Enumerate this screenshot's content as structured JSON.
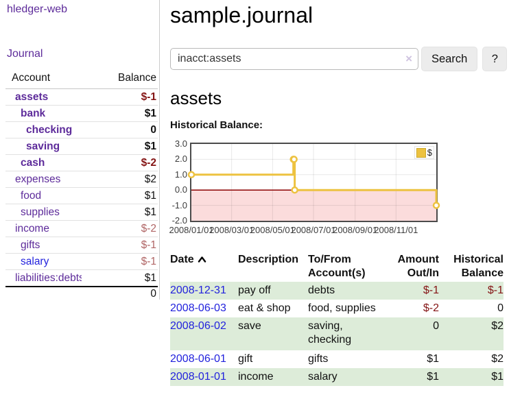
{
  "colors": {
    "accent_purple": "#5d2b9a",
    "link_blue": "#2222dd",
    "negative_strong": "#841414",
    "negative_soft": "#b06565",
    "row_green": "#ddecd9",
    "chart_series_yellow": "#edc240",
    "chart_negative_fill": "#fbdcdc",
    "chart_zero_line": "#8b0000"
  },
  "sidebar": {
    "brand": "hledger-web",
    "journal_label": "Journal",
    "accounts": {
      "header_account": "Account",
      "header_balance": "Balance",
      "rows": [
        {
          "name": "assets",
          "balance": "$-1"
        },
        {
          "name": "bank",
          "balance": "$1"
        },
        {
          "name": "checking",
          "balance": "0"
        },
        {
          "name": "saving",
          "balance": "$1"
        },
        {
          "name": "cash",
          "balance": "$-2"
        },
        {
          "name": "expenses",
          "balance": "$2"
        },
        {
          "name": "food",
          "balance": "$1"
        },
        {
          "name": "supplies",
          "balance": "$1"
        },
        {
          "name": "income",
          "balance": "$-2"
        },
        {
          "name": "gifts",
          "balance": "$-1"
        },
        {
          "name": "salary",
          "balance": "$-1"
        },
        {
          "name": "liabilities:debts",
          "balance": "$1"
        }
      ],
      "total": "0"
    }
  },
  "main": {
    "title": "sample.journal",
    "search": {
      "value": "inacct:assets",
      "clear_icon": "×",
      "button_label": "Search",
      "help_label": "?"
    },
    "account_heading": "assets",
    "register": {
      "headers": {
        "date": "Date",
        "sort_icon": "chevron-up",
        "description": "Description",
        "tofrom_1": "To/From",
        "tofrom_2": "Account(s)",
        "amount_1": "Amount",
        "amount_2": "Out/In",
        "balance_1": "Historical",
        "balance_2": "Balance"
      },
      "rows": [
        {
          "date": "2008-12-31",
          "description": "pay off",
          "accounts": "debts",
          "amount": "$-1",
          "balance": "$-1"
        },
        {
          "date": "2008-06-03",
          "description": "eat & shop",
          "accounts": "food, supplies",
          "amount": "$-2",
          "balance": "0"
        },
        {
          "date": "2008-06-02",
          "description": "save",
          "accounts": "saving,\nchecking",
          "amount": "0",
          "balance": "$2"
        },
        {
          "date": "2008-06-01",
          "description": "gift",
          "accounts": "gifts",
          "amount": "$1",
          "balance": "$2"
        },
        {
          "date": "2008-01-01",
          "description": "income",
          "accounts": "salary",
          "amount": "$1",
          "balance": "$1"
        }
      ]
    }
  },
  "chart_data": {
    "type": "line",
    "step": true,
    "title": "Historical Balance:",
    "series": [
      {
        "name": "$",
        "color": "#edc240",
        "points": [
          [
            "2008-01-01",
            1
          ],
          [
            "2008-06-01",
            2
          ],
          [
            "2008-06-02",
            2
          ],
          [
            "2008-06-03",
            0
          ],
          [
            "2008-12-31",
            -1
          ]
        ]
      }
    ],
    "xlim": [
      "2008-01-01",
      "2008-12-31"
    ],
    "ylim": [
      -2,
      3
    ],
    "yticks": [
      3.0,
      2.0,
      1.0,
      0.0,
      -1.0,
      -2.0
    ],
    "xtick_labels": [
      "2008/01/01",
      "2008/03/01",
      "2008/05/01",
      "2008/07/01",
      "2008/09/01",
      "2008/11/01"
    ],
    "grid": true,
    "legend_position": "top-right",
    "negative_region_fill": "#fbdcdc",
    "zero_line_color": "#8b0000"
  }
}
